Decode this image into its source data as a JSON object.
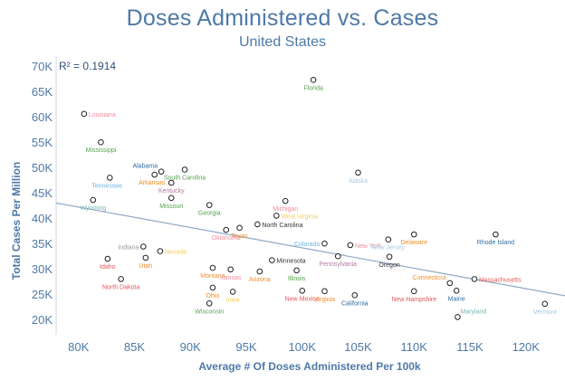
{
  "title": "Doses Administered vs. Cases",
  "subtitle": "United States",
  "chart_data": {
    "type": "scatter",
    "title": "Doses Administered vs. Cases",
    "subtitle": "United States",
    "xlabel": "Average # Of Doses Administered Per 100k",
    "ylabel": "Total Cases Per Million",
    "xlim": [
      78000,
      123500
    ],
    "ylim": [
      17000,
      72000
    ],
    "x_ticks": [
      80000,
      85000,
      90000,
      95000,
      100000,
      105000,
      110000,
      115000,
      120000
    ],
    "x_tick_labels": [
      "80K",
      "85K",
      "90K",
      "95K",
      "100K",
      "105K",
      "110K",
      "115K",
      "120K"
    ],
    "y_ticks": [
      20000,
      25000,
      30000,
      35000,
      40000,
      45000,
      50000,
      55000,
      60000,
      65000,
      70000
    ],
    "y_tick_labels": [
      "20K",
      "25K",
      "30K",
      "35K",
      "40K",
      "45K",
      "50K",
      "55K",
      "60K",
      "65K",
      "70K"
    ],
    "annotation": "R² = 0.1914",
    "trendline": {
      "x": [
        78000,
        123500
      ],
      "y": [
        43000,
        24700
      ],
      "color": "#8fa9c6"
    },
    "grid": false,
    "legend": "none",
    "points": [
      {
        "label": "Florida",
        "x": 101000,
        "y": 67300,
        "color": "#59a14f",
        "lpos": "below"
      },
      {
        "label": "Louisiana",
        "x": 80500,
        "y": 60600,
        "color": "#f28e9b",
        "lpos": "right"
      },
      {
        "label": "Mississippi",
        "x": 82000,
        "y": 55000,
        "color": "#59a14f",
        "lpos": "below"
      },
      {
        "label": "Alabama",
        "x": 87400,
        "y": 49200,
        "color": "#2e6da4",
        "lpos": "topleft"
      },
      {
        "label": "South Carolina",
        "x": 89500,
        "y": 49600,
        "color": "#59a14f",
        "lpos": "below"
      },
      {
        "label": "Tennessee",
        "x": 82800,
        "y": 48000,
        "color": "#6fb2e0",
        "lpos": "belowleft"
      },
      {
        "label": "Arkansas",
        "x": 86800,
        "y": 48600,
        "color": "#f28e2b",
        "lpos": "belowleft"
      },
      {
        "label": "Kentucky",
        "x": 88300,
        "y": 47000,
        "color": "#b07aa1",
        "lpos": "below"
      },
      {
        "label": "Missouri",
        "x": 88300,
        "y": 44000,
        "color": "#59a14f",
        "lpos": "below"
      },
      {
        "label": "Alaska",
        "x": 105000,
        "y": 49000,
        "color": "#a0cbe8",
        "lpos": "below"
      },
      {
        "label": "Wyoming",
        "x": 81300,
        "y": 43600,
        "color": "#76b7b2",
        "lpos": "below"
      },
      {
        "label": "Georgia",
        "x": 91700,
        "y": 42600,
        "color": "#59a14f",
        "lpos": "below"
      },
      {
        "label": "Michigan",
        "x": 98500,
        "y": 43400,
        "color": "#f28e9b",
        "lpos": "below"
      },
      {
        "label": "West Virginia",
        "x": 97700,
        "y": 40500,
        "color": "#f1ce63",
        "lpos": "right"
      },
      {
        "label": "North Carolina",
        "x": 96000,
        "y": 38800,
        "color": "#333333",
        "lpos": "right"
      },
      {
        "label": "Oklahoma",
        "x": 93200,
        "y": 37700,
        "color": "#f28e9b",
        "lpos": "below"
      },
      {
        "label": "Texas",
        "x": 94400,
        "y": 38100,
        "color": "#f28e2b",
        "lpos": "below"
      },
      {
        "label": "Colorado",
        "x": 102000,
        "y": 35000,
        "color": "#6fb2e0",
        "lpos": "left"
      },
      {
        "label": "New York",
        "x": 104300,
        "y": 34700,
        "color": "#f28e9b",
        "lpos": "right"
      },
      {
        "label": "New Jersey",
        "x": 107700,
        "y": 35800,
        "color": "#a0cbe8",
        "lpos": "below"
      },
      {
        "label": "Delaware",
        "x": 110000,
        "y": 36800,
        "color": "#f28e2b",
        "lpos": "below"
      },
      {
        "label": "Rhode Island",
        "x": 117300,
        "y": 36800,
        "color": "#2e6da4",
        "lpos": "below"
      },
      {
        "label": "Indiana",
        "x": 85800,
        "y": 34400,
        "color": "#999999",
        "lpos": "left"
      },
      {
        "label": "Nevada",
        "x": 87300,
        "y": 33500,
        "color": "#f1ce63",
        "lpos": "right"
      },
      {
        "label": "Idaho",
        "x": 82600,
        "y": 32000,
        "color": "#e15759",
        "lpos": "below"
      },
      {
        "label": "Utah",
        "x": 86000,
        "y": 32200,
        "color": "#f28e2b",
        "lpos": "below"
      },
      {
        "label": "Pennsylvania",
        "x": 103200,
        "y": 32500,
        "color": "#b07aa1",
        "lpos": "below"
      },
      {
        "label": "Oregon",
        "x": 107800,
        "y": 32400,
        "color": "#333333",
        "lpos": "below"
      },
      {
        "label": "Minnesota",
        "x": 97300,
        "y": 31700,
        "color": "#333333",
        "lpos": "right"
      },
      {
        "label": "Montana",
        "x": 92000,
        "y": 30200,
        "color": "#f28e2b",
        "lpos": "below"
      },
      {
        "label": "Kansas",
        "x": 93600,
        "y": 29900,
        "color": "#f28e9b",
        "lpos": "below"
      },
      {
        "label": "Arizona",
        "x": 96200,
        "y": 29500,
        "color": "#f28e2b",
        "lpos": "below"
      },
      {
        "label": "Illinois",
        "x": 99500,
        "y": 29700,
        "color": "#59a14f",
        "lpos": "below"
      },
      {
        "label": "Connecticut",
        "x": 113200,
        "y": 27200,
        "color": "#f28e2b",
        "lpos": "topleft"
      },
      {
        "label": "Massachusetts",
        "x": 115400,
        "y": 28000,
        "color": "#e15759",
        "lpos": "right"
      },
      {
        "label": "North Dakota",
        "x": 83800,
        "y": 28000,
        "color": "#e15759",
        "lpos": "below"
      },
      {
        "label": "Ohio",
        "x": 92000,
        "y": 26300,
        "color": "#f28e2b",
        "lpos": "below"
      },
      {
        "label": "Iowa",
        "x": 93800,
        "y": 25500,
        "color": "#f1ce63",
        "lpos": "below"
      },
      {
        "label": "New Mexico",
        "x": 100000,
        "y": 25700,
        "color": "#e15759",
        "lpos": "below"
      },
      {
        "label": "Virginia",
        "x": 102000,
        "y": 25600,
        "color": "#f28e2b",
        "lpos": "below"
      },
      {
        "label": "California",
        "x": 104700,
        "y": 24800,
        "color": "#2e6da4",
        "lpos": "below"
      },
      {
        "label": "New Hampshire",
        "x": 110000,
        "y": 25600,
        "color": "#e15759",
        "lpos": "below"
      },
      {
        "label": "Maine",
        "x": 113800,
        "y": 25700,
        "color": "#2e6da4",
        "lpos": "below"
      },
      {
        "label": "Wisconsin",
        "x": 91700,
        "y": 23200,
        "color": "#59a14f",
        "lpos": "below"
      },
      {
        "label": "Maryland",
        "x": 113900,
        "y": 20500,
        "color": "#76b7b2",
        "lpos": "topright"
      },
      {
        "label": "Vermont",
        "x": 121700,
        "y": 23100,
        "color": "#a0cbe8",
        "lpos": "below"
      }
    ]
  }
}
